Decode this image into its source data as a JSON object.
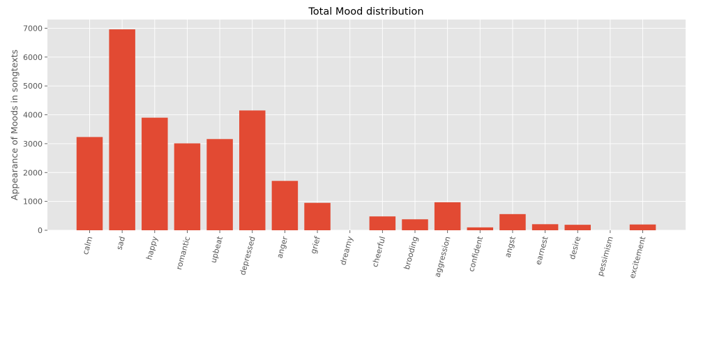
{
  "chart_data": {
    "type": "bar",
    "title": "Total Mood distribution",
    "xlabel": "",
    "ylabel": "Appearance of Moods in songtexts",
    "ylim": [
      0,
      7300
    ],
    "y_ticks": [
      0,
      1000,
      2000,
      3000,
      4000,
      5000,
      6000,
      7000
    ],
    "grid": true,
    "legend": "none",
    "style": "ggplot",
    "colors": {
      "bar": "#e24a33",
      "background": "#e5e5e5",
      "grid": "#ffffff",
      "text": "#555555",
      "title": "#000000"
    },
    "categories": [
      "calm",
      "sad",
      "happy",
      "romantic",
      "upbeat",
      "depressed",
      "anger",
      "grief",
      "dreamy",
      "cheerful",
      "brooding",
      "aggression",
      "confident",
      "angst",
      "earnest",
      "desire",
      "pessimism",
      "excitement"
    ],
    "values": [
      3230,
      6960,
      3900,
      3010,
      3160,
      4150,
      1710,
      950,
      0,
      480,
      380,
      970,
      100,
      560,
      210,
      190,
      0,
      200
    ]
  }
}
